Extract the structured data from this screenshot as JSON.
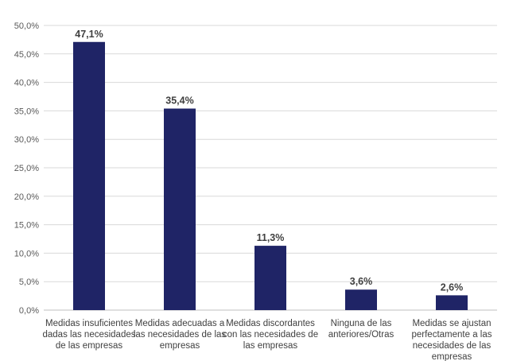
{
  "chart_data": {
    "type": "bar",
    "title": "",
    "xlabel": "",
    "ylabel": "",
    "ylim": [
      0,
      50
    ],
    "y_ticks": [
      "0,0%",
      "5,0%",
      "10,0%",
      "15,0%",
      "20,0%",
      "25,0%",
      "30,0%",
      "35,0%",
      "40,0%",
      "45,0%",
      "50,0%"
    ],
    "grid": true,
    "legend": "none",
    "bar_color": "#1f2466",
    "categories": [
      [
        "Medidas insuficientes",
        "dadas las necesidades",
        "de las empresas"
      ],
      [
        "Medidas adecuadas a",
        "las necesidades de las",
        "empresas"
      ],
      [
        "Medidas discordantes",
        "con las necesidades de",
        "las empresas"
      ],
      [
        "Ninguna de las",
        "anteriores/Otras"
      ],
      [
        "Medidas se ajustan",
        "perfectamente a las",
        "necesidades de las",
        "empresas"
      ]
    ],
    "values": [
      47.1,
      35.4,
      11.3,
      3.6,
      2.6
    ],
    "data_labels": [
      "47,1%",
      "35,4%",
      "11,3%",
      "3,6%",
      "2,6%"
    ]
  }
}
